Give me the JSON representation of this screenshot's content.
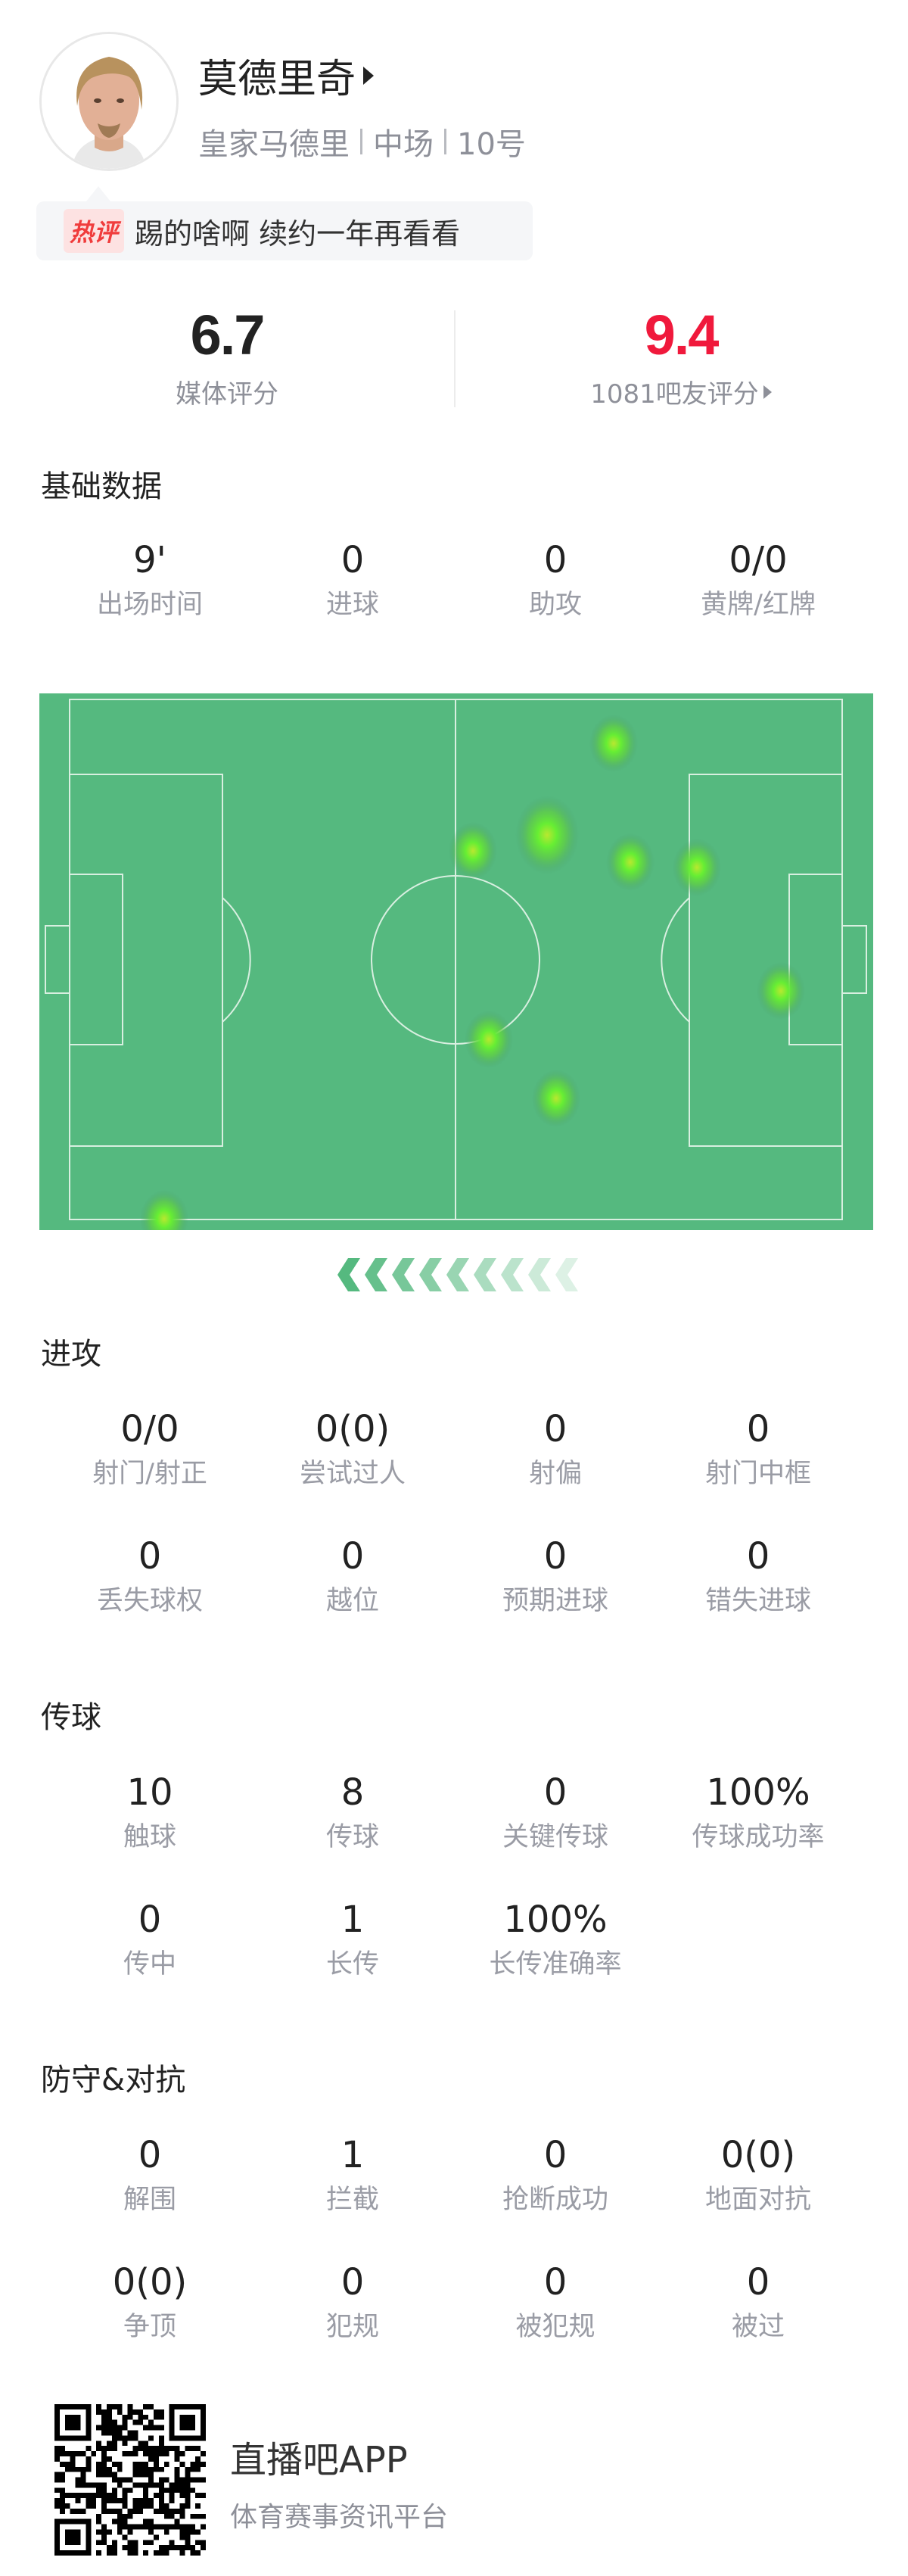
{
  "player": {
    "name": "莫德里奇",
    "team": "皇家马德里",
    "position": "中场",
    "number": "10号"
  },
  "hot_comment": {
    "tag": "热评",
    "text": "踢的啥啊 续约一年再看看"
  },
  "ratings": {
    "media": {
      "value": "6.7",
      "label": "媒体评分",
      "color": "#222222"
    },
    "fans": {
      "value": "9.4",
      "label": "1081吧友评分",
      "color": "#f0193c"
    }
  },
  "basic": {
    "title": "基础数据",
    "stats": [
      {
        "value": "9'",
        "label": "出场时间"
      },
      {
        "value": "0",
        "label": "进球"
      },
      {
        "value": "0",
        "label": "助攻"
      },
      {
        "value": "0/0",
        "label": "黄牌/红牌"
      }
    ]
  },
  "heatmap": {
    "pitch_color": "#55b97f",
    "spot_color": "#66ee33"
  },
  "attack": {
    "title": "进攻",
    "stats": [
      {
        "value": "0/0",
        "label": "射门/射正"
      },
      {
        "value": "0(0)",
        "label": "尝试过人"
      },
      {
        "value": "0",
        "label": "射偏"
      },
      {
        "value": "0",
        "label": "射门中框"
      },
      {
        "value": "0",
        "label": "丢失球权"
      },
      {
        "value": "0",
        "label": "越位"
      },
      {
        "value": "0",
        "label": "预期进球"
      },
      {
        "value": "0",
        "label": "错失进球"
      }
    ]
  },
  "passing": {
    "title": "传球",
    "stats": [
      {
        "value": "10",
        "label": "触球"
      },
      {
        "value": "8",
        "label": "传球"
      },
      {
        "value": "0",
        "label": "关键传球"
      },
      {
        "value": "100%",
        "label": "传球成功率"
      },
      {
        "value": "0",
        "label": "传中"
      },
      {
        "value": "1",
        "label": "长传"
      },
      {
        "value": "100%",
        "label": "长传准确率"
      }
    ]
  },
  "defense": {
    "title": "防守&对抗",
    "stats": [
      {
        "value": "0",
        "label": "解围"
      },
      {
        "value": "1",
        "label": "拦截"
      },
      {
        "value": "0",
        "label": "抢断成功"
      },
      {
        "value": "0(0)",
        "label": "地面对抗"
      },
      {
        "value": "0(0)",
        "label": "争顶"
      },
      {
        "value": "0",
        "label": "犯规"
      },
      {
        "value": "0",
        "label": "被犯规"
      },
      {
        "value": "0",
        "label": "被过"
      }
    ]
  },
  "footer": {
    "app_name": "直播吧APP",
    "tagline": "体育赛事资讯平台"
  }
}
